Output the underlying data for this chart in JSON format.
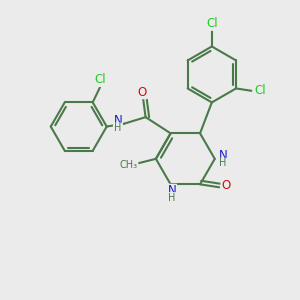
{
  "bg_color": "#ebebeb",
  "bond_color": "#4a7a4a",
  "bond_width": 1.5,
  "atom_colors": {
    "C": "#4a7a4a",
    "N": "#1a1acc",
    "O": "#cc1111",
    "Cl": "#22cc22",
    "H": "#4a7a4a"
  },
  "font_size_atom": 8.5,
  "font_size_small": 7.0,
  "font_size_h": 7.0
}
